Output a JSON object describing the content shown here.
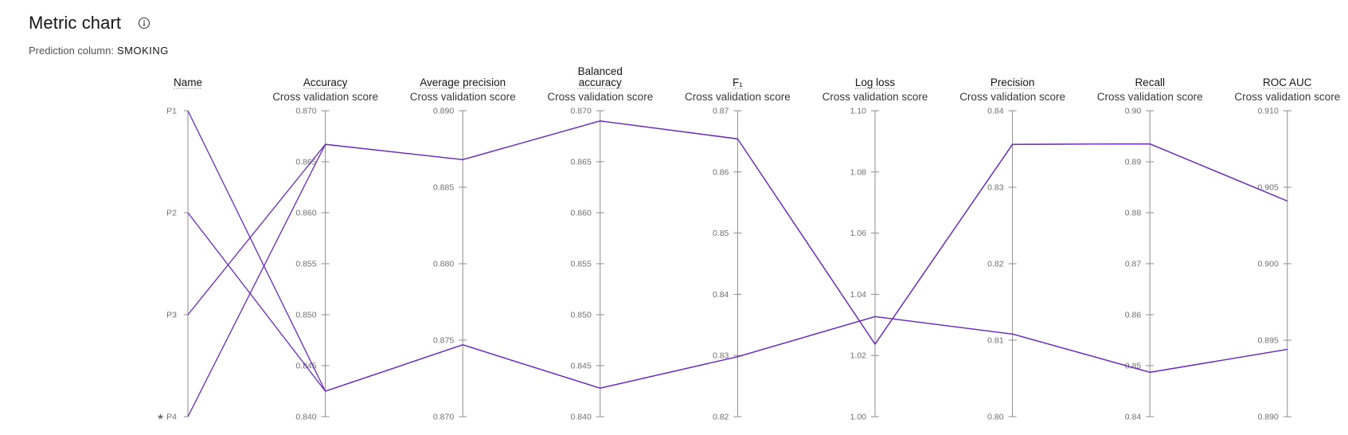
{
  "header": {
    "title": "Metric chart",
    "info_icon": "info-icon",
    "prediction_label": "Prediction column:",
    "prediction_value": "SMOKING"
  },
  "colors": {
    "series_line": "#6929c4",
    "axis_line": "#8d8d8d",
    "tick_text": "#6f6f6f"
  },
  "chart_data": {
    "type": "parallel-coordinates",
    "axes": [
      {
        "key": "name",
        "title_lines": [
          "Name"
        ],
        "subtitle": "",
        "categorical": true,
        "categories": [
          "P1",
          "P2",
          "P3",
          "★ P4"
        ]
      },
      {
        "key": "accuracy",
        "title_lines": [
          "Accuracy"
        ],
        "subtitle": "Cross validation score",
        "range": [
          0.84,
          0.87
        ],
        "ticks": [
          "0.840",
          "0.845",
          "0.850",
          "0.855",
          "0.860",
          "0.865",
          "0.870"
        ]
      },
      {
        "key": "average_precision",
        "title_lines": [
          "Average precision"
        ],
        "subtitle": "Cross validation score",
        "range": [
          0.87,
          0.89
        ],
        "ticks": [
          "0.870",
          "0.875",
          "0.880",
          "0.885",
          "0.890"
        ]
      },
      {
        "key": "balanced_accuracy",
        "title_lines": [
          "Balanced",
          "accuracy"
        ],
        "subtitle": "Cross validation score",
        "range": [
          0.84,
          0.87
        ],
        "ticks": [
          "0.840",
          "0.845",
          "0.850",
          "0.855",
          "0.860",
          "0.865",
          "0.870"
        ]
      },
      {
        "key": "f1",
        "title_lines": [
          "F₁"
        ],
        "subtitle": "Cross validation score",
        "range": [
          0.82,
          0.87
        ],
        "ticks": [
          "0.82",
          "0.83",
          "0.84",
          "0.85",
          "0.86",
          "0.87"
        ]
      },
      {
        "key": "log_loss",
        "title_lines": [
          "Log loss"
        ],
        "subtitle": "Cross validation score",
        "range": [
          1.0,
          1.1
        ],
        "ticks": [
          "1.00",
          "1.02",
          "1.04",
          "1.06",
          "1.08",
          "1.10"
        ]
      },
      {
        "key": "precision",
        "title_lines": [
          "Precision"
        ],
        "subtitle": "Cross validation score",
        "range": [
          0.8,
          0.84
        ],
        "ticks": [
          "0.80",
          "0.81",
          "0.82",
          "0.83",
          "0.84"
        ]
      },
      {
        "key": "recall",
        "title_lines": [
          "Recall"
        ],
        "subtitle": "Cross validation score",
        "range": [
          0.84,
          0.9
        ],
        "ticks": [
          "0.84",
          "0.85",
          "0.86",
          "0.87",
          "0.88",
          "0.89",
          "0.90"
        ]
      },
      {
        "key": "roc_auc",
        "title_lines": [
          "ROC AUC"
        ],
        "subtitle": "Cross validation score",
        "range": [
          0.89,
          0.91
        ],
        "ticks": [
          "0.890",
          "0.895",
          "0.900",
          "0.905",
          "0.910"
        ]
      }
    ],
    "series": [
      {
        "name": "P1",
        "values": {
          "accuracy": 0.8425,
          "average_precision": 0.8747,
          "balanced_accuracy": 0.8428,
          "f1": 0.8298,
          "log_loss": 1.0327,
          "precision": 0.8108,
          "recall": 0.8487,
          "roc_auc": 0.8944
        }
      },
      {
        "name": "P2",
        "values": {
          "accuracy": 0.8425,
          "average_precision": 0.8747,
          "balanced_accuracy": 0.8428,
          "f1": 0.8298,
          "log_loss": 1.0327,
          "precision": 0.8108,
          "recall": 0.8487,
          "roc_auc": 0.8944
        }
      },
      {
        "name": "P3",
        "values": {
          "accuracy": 0.8667,
          "average_precision": 0.8868,
          "balanced_accuracy": 0.869,
          "f1": 0.8654,
          "log_loss": 1.0237,
          "precision": 0.8356,
          "recall": 0.8935,
          "roc_auc": 0.9041
        }
      },
      {
        "name": "P4",
        "values": {
          "accuracy": 0.8667,
          "average_precision": 0.8868,
          "balanced_accuracy": 0.869,
          "f1": 0.8654,
          "log_loss": 1.0237,
          "precision": 0.8356,
          "recall": 0.8935,
          "roc_auc": 0.9041
        }
      }
    ]
  }
}
